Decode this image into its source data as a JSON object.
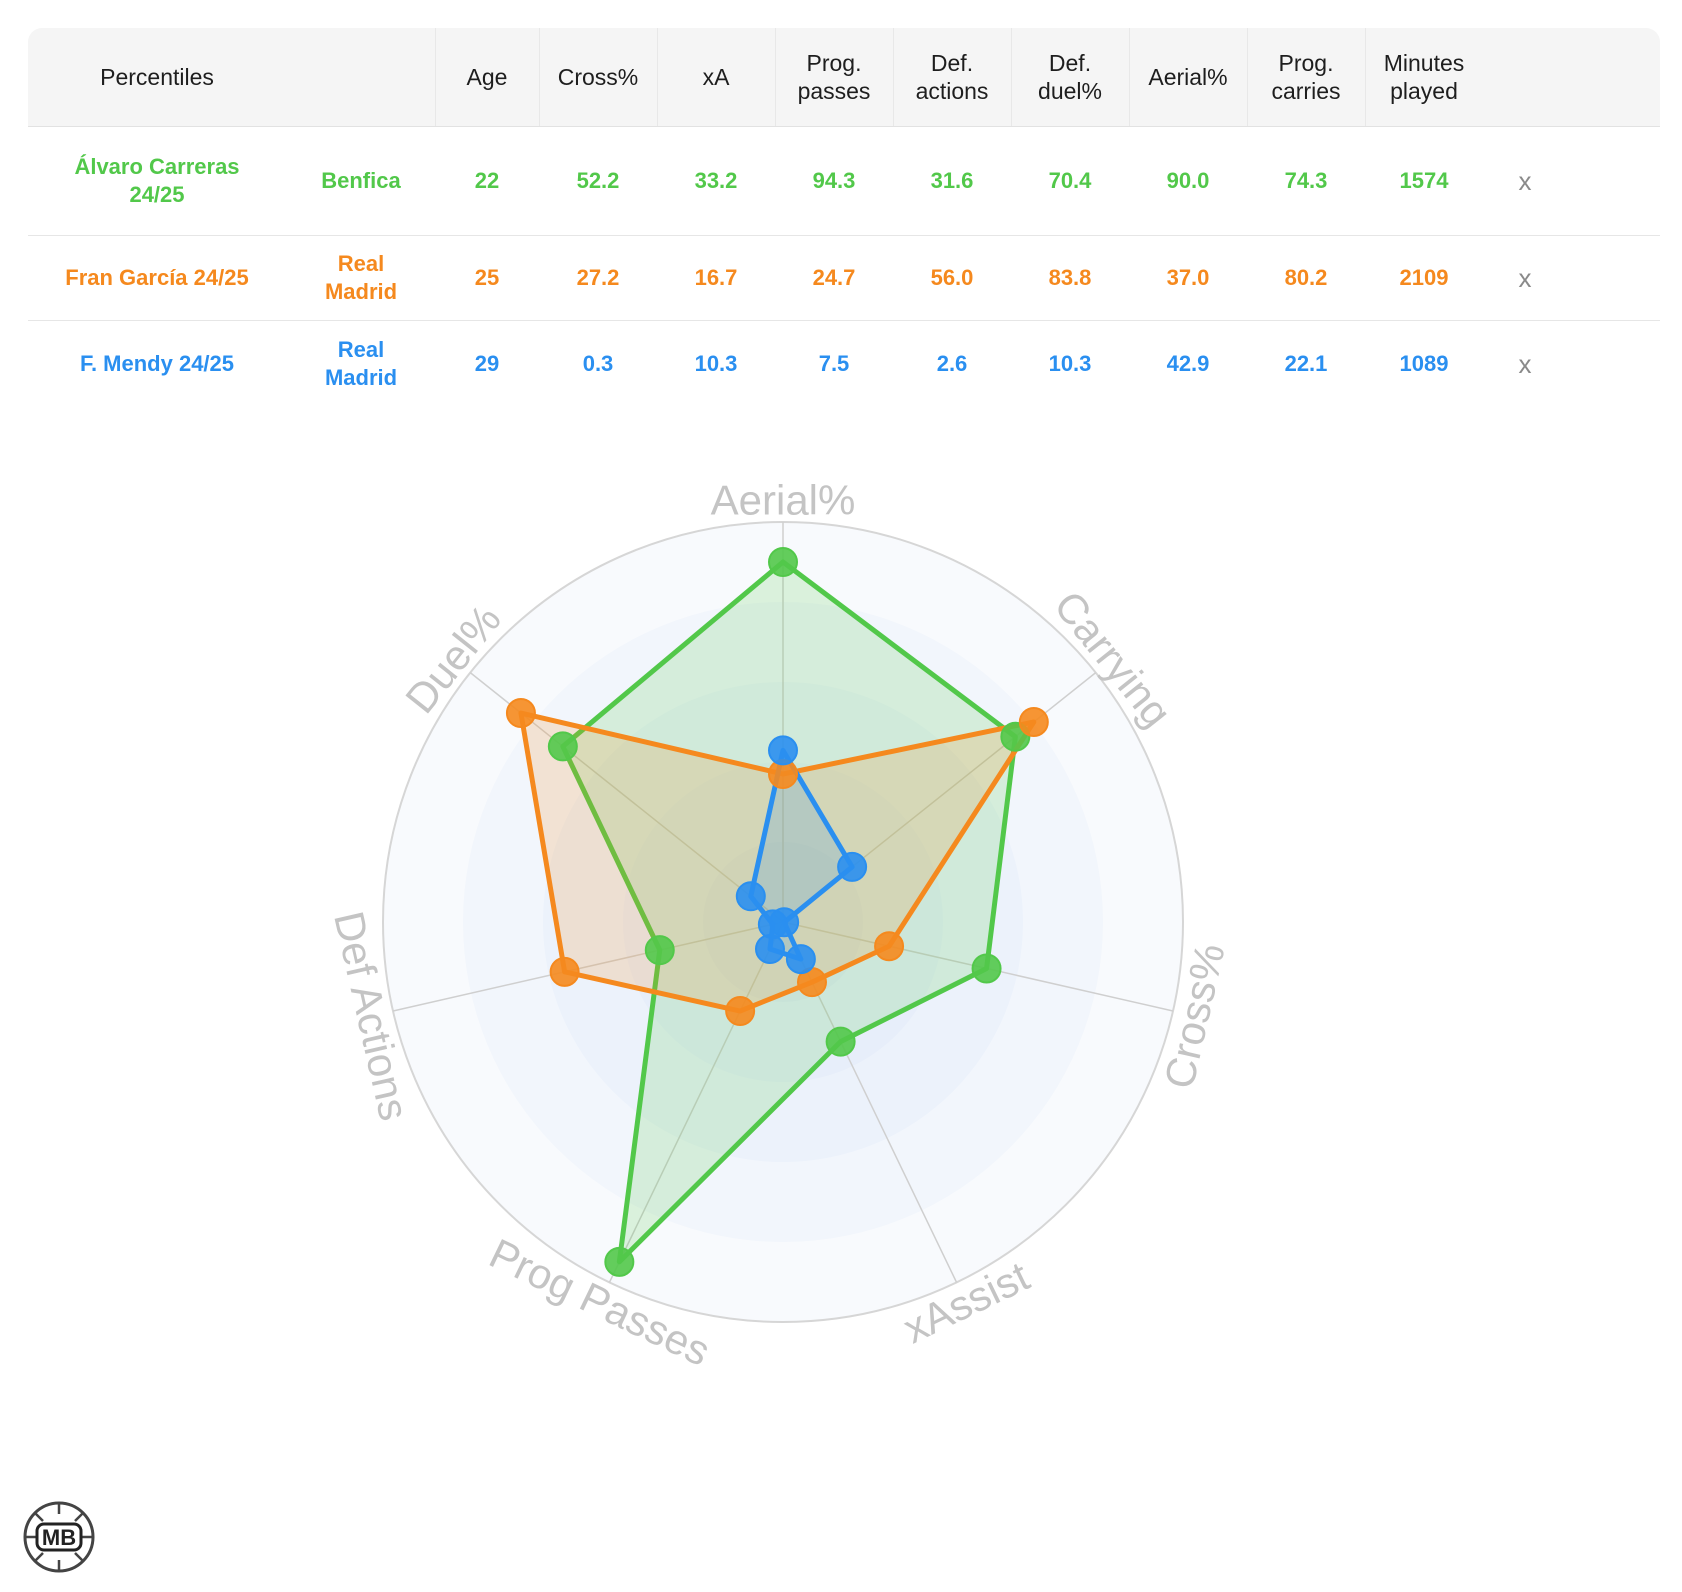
{
  "table": {
    "header_label": "Percentiles",
    "columns": [
      {
        "l1": "Age",
        "l2": ""
      },
      {
        "l1": "Cross%",
        "l2": ""
      },
      {
        "l1": "xA",
        "l2": ""
      },
      {
        "l1": "Prog.",
        "l2": "passes"
      },
      {
        "l1": "Def.",
        "l2": "actions"
      },
      {
        "l1": "Def.",
        "l2": "duel%"
      },
      {
        "l1": "Aerial%",
        "l2": ""
      },
      {
        "l1": "Prog.",
        "l2": "carries"
      },
      {
        "l1": "Minutes",
        "l2": "played"
      }
    ],
    "rows": [
      {
        "player_l1": "Álvaro Carreras",
        "player_l2": "24/25",
        "team_l1": "Benfica",
        "team_l2": "",
        "values": [
          "22",
          "52.2",
          "33.2",
          "94.3",
          "31.6",
          "70.4",
          "90.0",
          "74.3",
          "1574"
        ],
        "remove": "x"
      },
      {
        "player_l1": "Fran García 24/25",
        "player_l2": "",
        "team_l1": "Real",
        "team_l2": "Madrid",
        "values": [
          "25",
          "27.2",
          "16.7",
          "24.7",
          "56.0",
          "83.8",
          "37.0",
          "80.2",
          "2109"
        ],
        "remove": "x"
      },
      {
        "player_l1": "F. Mendy 24/25",
        "player_l2": "",
        "team_l1": "Real",
        "team_l2": "Madrid",
        "values": [
          "29",
          "0.3",
          "10.3",
          "7.5",
          "2.6",
          "10.3",
          "42.9",
          "22.1",
          "1089"
        ],
        "remove": "x"
      }
    ]
  },
  "colors": {
    "green": "#52c84a",
    "orange": "#f5891e",
    "blue": "#2a8ff0"
  },
  "chart_data": {
    "type": "radar",
    "axes": [
      "Aerial%",
      "Carrying",
      "Cross%",
      "xAssist",
      "Prog Passes",
      "Def Actions",
      "Duel%"
    ],
    "range": [
      0,
      100
    ],
    "series": [
      {
        "name": "Álvaro Carreras 24/25",
        "color": "#52c84a",
        "values": [
          90.0,
          74.3,
          52.2,
          33.2,
          94.3,
          31.6,
          70.4
        ]
      },
      {
        "name": "Fran García 24/25",
        "color": "#f5891e",
        "values": [
          37.0,
          80.2,
          27.2,
          16.7,
          24.7,
          56.0,
          83.8
        ]
      },
      {
        "name": "F. Mendy 24/25",
        "color": "#2a8ff0",
        "values": [
          42.9,
          22.1,
          0.3,
          10.3,
          7.5,
          2.6,
          10.3
        ]
      }
    ]
  },
  "logo": {
    "text": "MB",
    "icon": "ball-badge-icon"
  }
}
